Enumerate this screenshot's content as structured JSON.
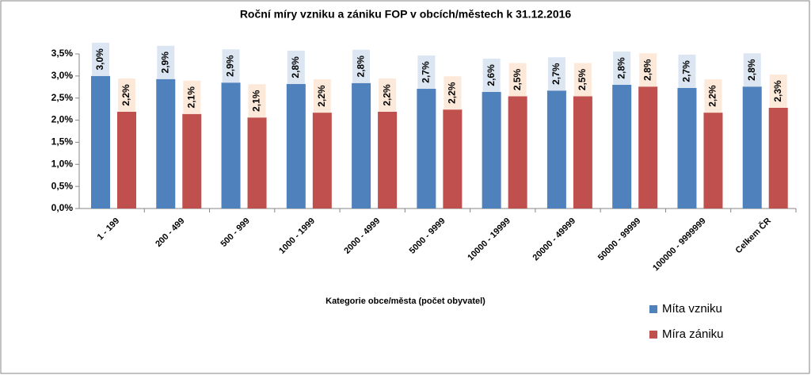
{
  "chart_data": {
    "type": "bar",
    "title": "Roční míry vzniku a zániku FOP v obcích/městech k 31.12.2016",
    "x_label": "Kategorie obce/města (počet obyvatel)",
    "categories": [
      "1 - 199",
      "200 - 499",
      "500 - 999",
      "1000 - 1999",
      "2000 - 4999",
      "5000 - 9999",
      "10000 - 19999",
      "20000 - 49999",
      "50000 - 99999",
      "100000 - 9999999",
      "Celkem ČR"
    ],
    "series": [
      {
        "name": "Míta vzniku",
        "color": "#4f81bd",
        "label_bg": "#dce6f2",
        "values": [
          3.0,
          2.93,
          2.85,
          2.82,
          2.84,
          2.71,
          2.64,
          2.67,
          2.8,
          2.73,
          2.76
        ],
        "value_labels": [
          "3,0%",
          "2,9%",
          "2,9%",
          "2,8%",
          "2,8%",
          "2,7%",
          "2,6%",
          "2,7%",
          "2,8%",
          "2,7%",
          "2,8%"
        ]
      },
      {
        "name": "Míra zániku",
        "color": "#c0504d",
        "label_bg": "#fde9d9",
        "values": [
          2.19,
          2.14,
          2.06,
          2.17,
          2.19,
          2.24,
          2.54,
          2.54,
          2.76,
          2.17,
          2.28
        ],
        "value_labels": [
          "2,2%",
          "2,1%",
          "2,1%",
          "2,2%",
          "2,2%",
          "2,2%",
          "2,5%",
          "2,5%",
          "2,8%",
          "2,2%",
          "2,3%"
        ]
      }
    ],
    "ylim": [
      0,
      3.5
    ],
    "yticks": [
      {
        "value": 0,
        "label": "0,0%"
      },
      {
        "value": 0.5,
        "label": "0,5%"
      },
      {
        "value": 1,
        "label": "1,0%"
      },
      {
        "value": 1.5,
        "label": "1,5%"
      },
      {
        "value": 2,
        "label": "2,0%"
      },
      {
        "value": 2.5,
        "label": "2,5%"
      },
      {
        "value": 3,
        "label": "3,0%"
      },
      {
        "value": 3.5,
        "label": "3,5%"
      }
    ],
    "grid": false
  }
}
